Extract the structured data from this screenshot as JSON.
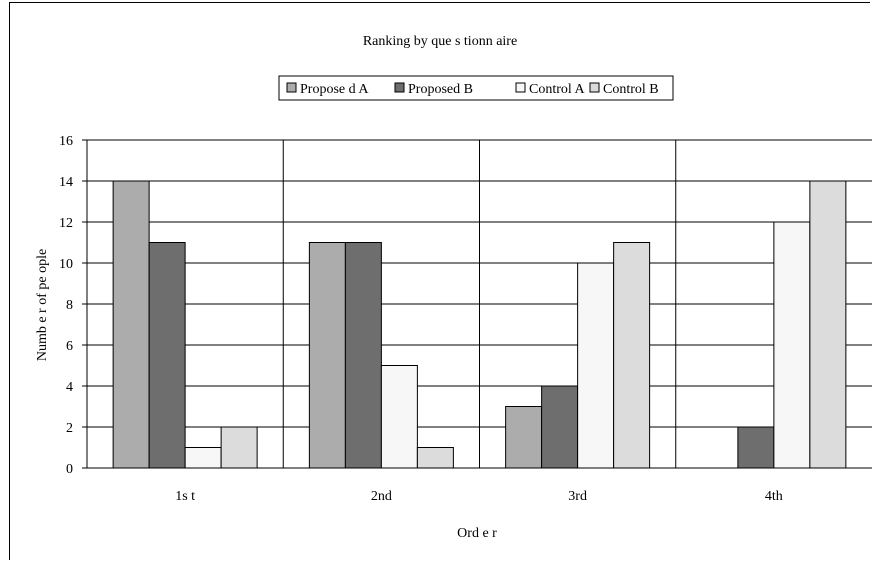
{
  "chart_data": {
    "type": "bar",
    "title": "Ranking by que s tionn aire",
    "xlabel": "Ord e r",
    "ylabel": "Numb e r of pe ople",
    "categories": [
      "1s t",
      "2nd",
      "3rd",
      "4th"
    ],
    "series": [
      {
        "name": "Propose d A",
        "color": "#acacac",
        "values": [
          14,
          11,
          3,
          0
        ]
      },
      {
        "name": "Proposed B",
        "color": "#6e6e6e",
        "values": [
          11,
          11,
          4,
          2
        ]
      },
      {
        "name": "Control A",
        "color": "#f7f7f7",
        "values": [
          1,
          5,
          10,
          12
        ]
      },
      {
        "name": "Control B",
        "color": "#dcdcdc",
        "values": [
          2,
          1,
          11,
          14
        ]
      }
    ],
    "ylim": [
      0,
      16
    ],
    "yticks": [
      0,
      2,
      4,
      6,
      8,
      10,
      12,
      14,
      16
    ],
    "grid": true,
    "legend_position": "top"
  }
}
